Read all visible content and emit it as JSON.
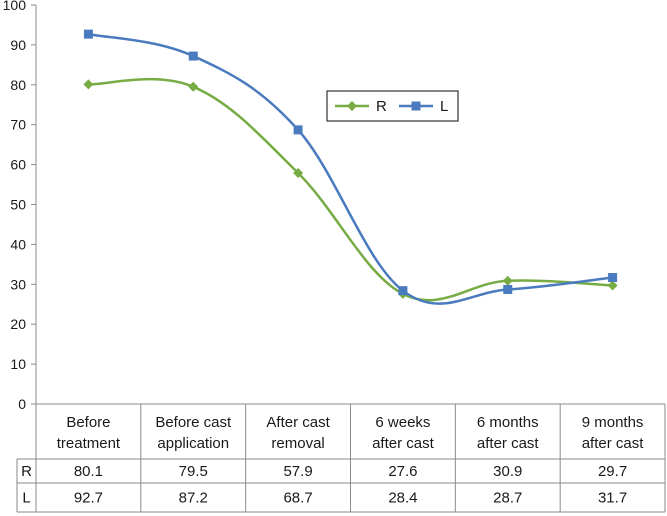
{
  "chart_data": {
    "type": "line",
    "categories": [
      [
        "Before",
        "treatment"
      ],
      [
        "Before cast",
        "application"
      ],
      [
        "After cast",
        "removal"
      ],
      [
        "6 weeks",
        "after cast"
      ],
      [
        "6 months",
        "after cast"
      ],
      [
        "9 months",
        "after cast"
      ]
    ],
    "ylim": [
      0,
      100
    ],
    "yticks": [
      0,
      10,
      20,
      30,
      40,
      50,
      60,
      70,
      80,
      90,
      100
    ],
    "grid": false,
    "legend_position": "upper-right",
    "series": [
      {
        "name": "R",
        "color": "#77ac44",
        "marker": "diamond",
        "values": [
          80.1,
          79.5,
          57.9,
          27.6,
          30.9,
          29.7
        ],
        "labels": [
          "80.1",
          "79.5",
          "57.9",
          "27.6",
          "30.9",
          "29.7"
        ]
      },
      {
        "name": "L",
        "color": "#4a7bbf",
        "marker": "square",
        "values": [
          92.7,
          87.2,
          68.7,
          28.4,
          28.7,
          31.7
        ],
        "labels": [
          "92.7",
          "87.2",
          "68.7",
          "28.4",
          "28.7",
          "31.7"
        ]
      }
    ]
  }
}
